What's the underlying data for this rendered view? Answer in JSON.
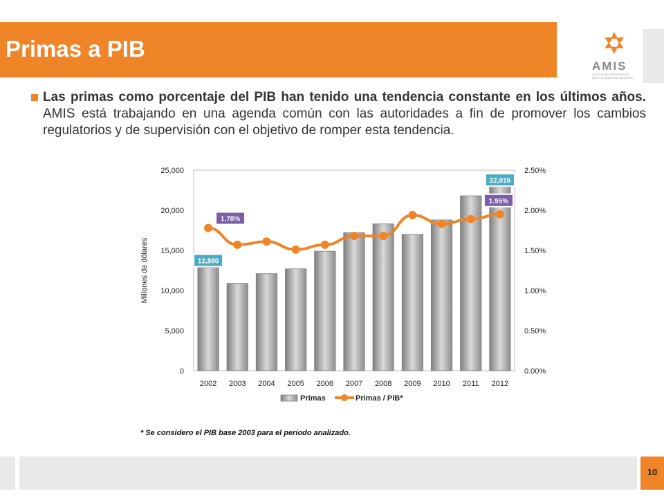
{
  "header": {
    "title": "Primas a PIB",
    "logo_text": "AMIS",
    "logo_subtext": "ASOCIACIÓN MEXICANA DE INSTITUCIONES DE SEGUROS"
  },
  "body": {
    "bold_text": "Las primas como porcentaje del PIB han tenido una tendencia constante en los últimos años.",
    "regular_text": " AMIS está trabajando en una agenda común con las autoridades a fin de promover los cambios regulatorios y de supervisión con el objetivo de romper esta tendencia."
  },
  "footnote": "* Se considero el PIB base 2003 para el periodo analizado.",
  "page_number": "10",
  "colors": {
    "accent": "#ef8528",
    "purple_label": "#7b5ea7",
    "teal_label": "#4bacc6",
    "bar": "#a6a6a6"
  },
  "chart_data": {
    "type": "bar",
    "categories": [
      "2002",
      "2003",
      "2004",
      "2005",
      "2006",
      "2007",
      "2008",
      "2009",
      "2010",
      "2011",
      "2012"
    ],
    "series": [
      {
        "name": "Primas",
        "type": "bar",
        "axis": "left",
        "values": [
          12880,
          10900,
          12100,
          12700,
          14900,
          17200,
          18300,
          17000,
          18800,
          21800,
          22916
        ]
      },
      {
        "name": "Primas / PIB*",
        "type": "line",
        "axis": "right",
        "values": [
          1.78,
          1.57,
          1.61,
          1.51,
          1.57,
          1.68,
          1.68,
          1.94,
          1.83,
          1.89,
          1.95
        ]
      }
    ],
    "ylabel": "Millones de dólares",
    "ylim": [
      0,
      25000
    ],
    "yticks": [
      "0",
      "5,000",
      "10,000",
      "15,000",
      "20,000",
      "25,000"
    ],
    "y2lim": [
      0,
      2.5
    ],
    "y2ticks": [
      "0.00%",
      "0.50%",
      "1.00%",
      "1.50%",
      "2.00%",
      "2.50%"
    ],
    "data_labels": [
      {
        "series": "Primas",
        "index": 0,
        "text": "12,880"
      },
      {
        "series": "Primas",
        "index": 10,
        "text": "22,916"
      },
      {
        "series": "Primas / PIB*",
        "index": 0,
        "text": "1.78%"
      },
      {
        "series": "Primas / PIB*",
        "index": 10,
        "text": "1.95%"
      }
    ],
    "legend_position": "bottom"
  }
}
